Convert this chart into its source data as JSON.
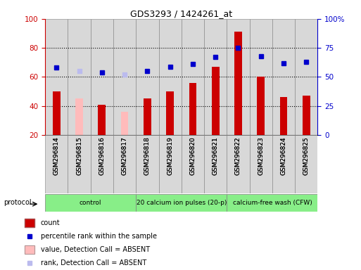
{
  "title": "GDS3293 / 1424261_at",
  "samples": [
    "GSM296814",
    "GSM296815",
    "GSM296816",
    "GSM296817",
    "GSM296818",
    "GSM296819",
    "GSM296820",
    "GSM296821",
    "GSM296822",
    "GSM296823",
    "GSM296824",
    "GSM296825"
  ],
  "bar_values": [
    50,
    45,
    41,
    36,
    45,
    50,
    56,
    67,
    91,
    60,
    46,
    47
  ],
  "bar_colors": [
    "#cc0000",
    "#ffbbbb",
    "#cc0000",
    "#ffbbbb",
    "#cc0000",
    "#cc0000",
    "#cc0000",
    "#cc0000",
    "#cc0000",
    "#cc0000",
    "#cc0000",
    "#cc0000"
  ],
  "dot_values": [
    58,
    55,
    54,
    52,
    55,
    59,
    61,
    67,
    75,
    68,
    62,
    63
  ],
  "dot_colors": [
    "#0000cc",
    "#bbbbee",
    "#0000cc",
    "#bbbbee",
    "#0000cc",
    "#0000cc",
    "#0000cc",
    "#0000cc",
    "#0000cc",
    "#0000cc",
    "#0000cc",
    "#0000cc"
  ],
  "ylim_left": [
    20,
    100
  ],
  "ylim_right": [
    0,
    100
  ],
  "yticks_left": [
    20,
    40,
    60,
    80,
    100
  ],
  "ytick_labels_right": [
    "0",
    "25",
    "50",
    "75",
    "100%"
  ],
  "yticks_right_vals": [
    0,
    25,
    50,
    75,
    100
  ],
  "proto_ranges": [
    [
      0,
      4,
      "control"
    ],
    [
      4,
      8,
      "20 calcium ion pulses (20-p)"
    ],
    [
      8,
      12,
      "calcium-free wash (CFW)"
    ]
  ],
  "proto_color": "#88ee88",
  "col_bg_color": "#d8d8d8",
  "legend_items": [
    {
      "label": "count",
      "color": "#cc0000",
      "type": "bar"
    },
    {
      "label": "percentile rank within the sample",
      "color": "#0000cc",
      "type": "dot"
    },
    {
      "label": "value, Detection Call = ABSENT",
      "color": "#ffbbbb",
      "type": "bar"
    },
    {
      "label": "rank, Detection Call = ABSENT",
      "color": "#bbbbee",
      "type": "dot"
    }
  ]
}
